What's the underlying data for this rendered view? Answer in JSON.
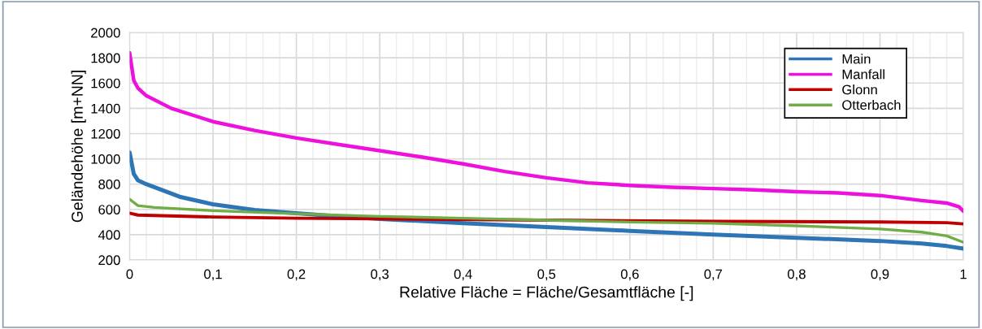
{
  "chart_data": {
    "type": "line",
    "xlabel": "Relative Fläche = Fläche/Gesamtfläche [-]",
    "ylabel": "Geländehöhe [m+NN]",
    "xlim": [
      0,
      1
    ],
    "ylim": [
      200,
      2000
    ],
    "xticks": [
      0,
      {
        "value": 0.1,
        "label": "0,1"
      },
      {
        "value": 0.2,
        "label": "0,2"
      },
      {
        "value": 0.3,
        "label": "0,3"
      },
      {
        "value": 0.4,
        "label": "0,4"
      },
      {
        "value": 0.5,
        "label": "0,5"
      },
      {
        "value": 0.6,
        "label": "0,6"
      },
      {
        "value": 0.7,
        "label": "0,7"
      },
      {
        "value": 0.8,
        "label": "0,8"
      },
      {
        "value": 0.9,
        "label": "0,9"
      },
      1
    ],
    "yticks": [
      200,
      400,
      600,
      800,
      1000,
      1200,
      1400,
      1600,
      1800,
      2000
    ],
    "grid": true,
    "legend": "top right",
    "marker": "none",
    "line_style": "solid",
    "series": [
      {
        "name": "Main",
        "color": "#2e75b6",
        "x": [
          0,
          0.005,
          0.01,
          0.02,
          0.04,
          0.06,
          0.1,
          0.15,
          0.2,
          0.25,
          0.3,
          0.4,
          0.5,
          0.6,
          0.7,
          0.8,
          0.9,
          0.95,
          0.98,
          1
        ],
        "values": [
          1050,
          880,
          830,
          800,
          750,
          700,
          640,
          595,
          570,
          545,
          525,
          490,
          460,
          430,
          400,
          375,
          350,
          330,
          310,
          290
        ]
      },
      {
        "name": "Manfall",
        "color": "#ee10dc",
        "x": [
          0,
          0.005,
          0.01,
          0.02,
          0.05,
          0.1,
          0.15,
          0.2,
          0.25,
          0.3,
          0.35,
          0.4,
          0.45,
          0.5,
          0.55,
          0.6,
          0.65,
          0.7,
          0.75,
          0.8,
          0.85,
          0.9,
          0.95,
          0.98,
          0.995,
          1
        ],
        "values": [
          1840,
          1620,
          1560,
          1500,
          1400,
          1295,
          1225,
          1165,
          1115,
          1065,
          1015,
          960,
          900,
          850,
          810,
          790,
          775,
          765,
          755,
          740,
          730,
          710,
          670,
          650,
          620,
          585
        ]
      },
      {
        "name": "Glonn",
        "color": "#c00000",
        "x": [
          0,
          0.01,
          0.1,
          0.2,
          0.3,
          0.5,
          0.7,
          0.9,
          0.98,
          1
        ],
        "values": [
          570,
          555,
          540,
          530,
          525,
          515,
          505,
          500,
          495,
          485
        ]
      },
      {
        "name": "Otterbach",
        "color": "#70ad47",
        "x": [
          0,
          0.01,
          0.03,
          0.1,
          0.2,
          0.3,
          0.4,
          0.5,
          0.6,
          0.7,
          0.8,
          0.9,
          0.95,
          0.98,
          1
        ],
        "values": [
          680,
          630,
          615,
          590,
          565,
          545,
          530,
          515,
          500,
          490,
          470,
          445,
          420,
          390,
          340
        ]
      }
    ]
  }
}
